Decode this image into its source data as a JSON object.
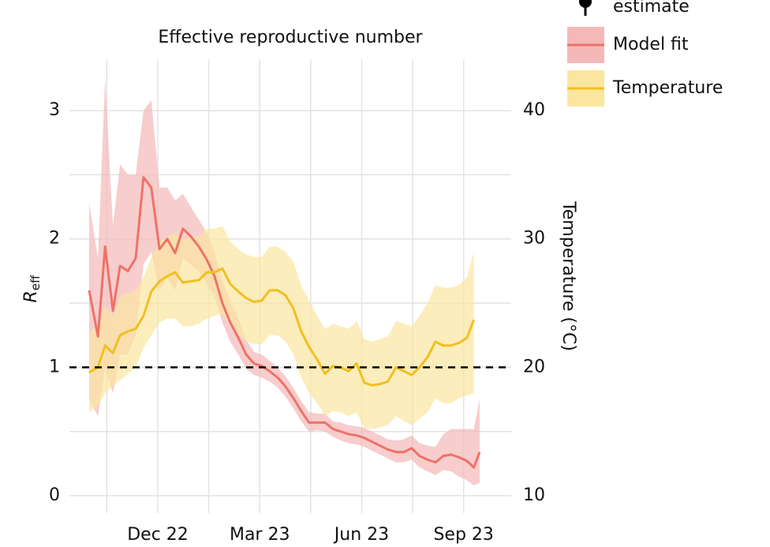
{
  "chart_data": {
    "type": "line",
    "title": "Effective reproductive number",
    "ylabel": "R",
    "ylabel_sub": "eff",
    "y2label": "Temperature (°C)",
    "legend_top_label": "estimate",
    "x": [
      -2.02,
      -1.76,
      -1.55,
      -1.32,
      -1.11,
      -0.88,
      -0.65,
      -0.42,
      -0.19,
      0.05,
      0.28,
      0.51,
      0.74,
      0.97,
      1.21,
      1.44,
      1.67,
      1.9,
      2.13,
      2.37,
      2.6,
      2.83,
      3.06,
      3.29,
      3.53,
      3.76,
      3.99,
      4.22,
      4.45,
      4.69,
      4.92,
      5.15,
      5.38,
      5.61,
      5.85,
      6.08,
      6.31,
      6.54,
      6.77,
      7.01,
      7.24,
      7.47,
      7.7,
      7.94,
      8.17,
      8.4,
      8.63,
      8.86,
      9.1,
      9.3,
      9.47
    ],
    "xlim": [
      -2.6,
      10.4
    ],
    "xticks": [
      {
        "value": 0,
        "label": "Dec 22"
      },
      {
        "value": 3,
        "label": "Mar 23"
      },
      {
        "value": 6,
        "label": "Jun 23"
      },
      {
        "value": 9,
        "label": "Sep 23"
      }
    ],
    "ylim": [
      -0.135,
      3.4
    ],
    "yticks": [
      0,
      1,
      2,
      3
    ],
    "y2lim": [
      8.65,
      44.0
    ],
    "y2ticks": [
      10,
      20,
      30,
      40
    ],
    "hline": 1,
    "grid": true,
    "series": [
      {
        "name": "Model fit",
        "color": "#ee7268",
        "band_color": "#f4b8b8",
        "values": [
          1.6,
          1.24,
          1.94,
          1.44,
          1.79,
          1.75,
          1.85,
          2.48,
          2.4,
          1.92,
          2.0,
          1.89,
          2.08,
          2.02,
          1.94,
          1.84,
          1.71,
          1.5,
          1.35,
          1.23,
          1.1,
          1.03,
          1.01,
          0.97,
          0.92,
          0.85,
          0.76,
          0.66,
          0.57,
          0.57,
          0.57,
          0.52,
          0.5,
          0.48,
          0.47,
          0.45,
          0.42,
          0.39,
          0.36,
          0.34,
          0.34,
          0.37,
          0.31,
          0.28,
          0.26,
          0.31,
          0.32,
          0.3,
          0.27,
          0.22,
          0.34
        ],
        "lower": [
          0.75,
          0.62,
          1.0,
          0.8,
          1.1,
          1.1,
          1.25,
          1.8,
          1.9,
          1.6,
          1.7,
          1.6,
          1.85,
          1.8,
          1.75,
          1.65,
          1.55,
          1.35,
          1.2,
          1.1,
          0.99,
          0.94,
          0.92,
          0.89,
          0.84,
          0.77,
          0.68,
          0.58,
          0.5,
          0.51,
          0.5,
          0.46,
          0.43,
          0.41,
          0.4,
          0.38,
          0.35,
          0.32,
          0.29,
          0.26,
          0.26,
          0.28,
          0.22,
          0.19,
          0.16,
          0.2,
          0.19,
          0.15,
          0.12,
          0.08,
          0.1
        ],
        "upper": [
          2.28,
          1.85,
          3.25,
          2.1,
          2.58,
          2.5,
          2.5,
          3.0,
          3.08,
          2.4,
          2.4,
          2.3,
          2.35,
          2.25,
          2.15,
          2.05,
          1.9,
          1.68,
          1.52,
          1.38,
          1.22,
          1.12,
          1.1,
          1.05,
          1.0,
          0.93,
          0.84,
          0.74,
          0.65,
          0.64,
          0.64,
          0.58,
          0.57,
          0.55,
          0.54,
          0.53,
          0.5,
          0.47,
          0.44,
          0.43,
          0.44,
          0.47,
          0.41,
          0.39,
          0.38,
          0.48,
          0.52,
          0.52,
          0.52,
          0.52,
          0.75
        ]
      },
      {
        "name": "Temperature",
        "color": "#f0c020",
        "band_color": "#fbe6a0",
        "axis": "y2",
        "values": [
          19.6,
          20.0,
          21.7,
          21.1,
          22.5,
          22.8,
          23.0,
          24.0,
          25.9,
          26.7,
          27.1,
          27.4,
          26.6,
          26.7,
          26.8,
          27.4,
          27.4,
          27.7,
          26.5,
          25.9,
          25.4,
          25.1,
          25.2,
          26.0,
          26.0,
          25.6,
          24.6,
          22.8,
          21.6,
          20.6,
          19.5,
          20.1,
          20.0,
          19.7,
          20.3,
          18.8,
          18.6,
          18.7,
          18.9,
          20.0,
          19.7,
          19.4,
          20.0,
          20.8,
          22.0,
          21.7,
          21.7,
          21.9,
          22.3,
          23.7,
          null
        ],
        "lower": [
          16.5,
          17.0,
          18.0,
          18.5,
          19.0,
          19.5,
          20.0,
          21.5,
          22.5,
          23.5,
          23.8,
          23.8,
          23.2,
          23.2,
          23.4,
          23.8,
          24.0,
          24.2,
          23.2,
          22.5,
          22.0,
          21.8,
          21.8,
          22.5,
          22.5,
          22.0,
          21.0,
          19.2,
          18.0,
          17.2,
          16.2,
          16.6,
          16.5,
          16.2,
          16.5,
          15.3,
          15.2,
          15.3,
          15.5,
          16.2,
          15.8,
          15.5,
          16.0,
          16.5,
          17.6,
          17.2,
          17.2,
          17.6,
          17.8,
          18.0,
          null
        ],
        "upper": [
          22.8,
          23.2,
          24.8,
          24.0,
          25.6,
          25.8,
          26.0,
          27.0,
          28.6,
          29.8,
          30.2,
          30.5,
          30.0,
          30.2,
          30.2,
          30.8,
          30.8,
          31.0,
          29.8,
          29.2,
          28.8,
          28.6,
          28.6,
          29.4,
          29.4,
          29.0,
          28.2,
          26.4,
          25.2,
          24.0,
          23.0,
          23.4,
          23.2,
          23.0,
          23.6,
          22.2,
          22.0,
          22.2,
          22.4,
          23.6,
          23.4,
          23.2,
          24.0,
          25.0,
          26.4,
          26.2,
          26.2,
          26.4,
          27.0,
          29.0,
          null
        ]
      }
    ]
  }
}
